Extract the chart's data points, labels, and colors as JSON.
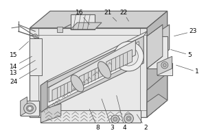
{
  "line_color": "#606060",
  "light_gray": "#e8e8e8",
  "mid_gray": "#d0d0d0",
  "dark_gray": "#b8b8b8",
  "label_fontsize": 6.5,
  "labels": {
    "1": {
      "lpos": [
        289,
        95
      ],
      "tpos": [
        258,
        105
      ]
    },
    "2": {
      "lpos": [
        213,
        12
      ],
      "tpos": [
        200,
        32
      ]
    },
    "3": {
      "lpos": [
        163,
        12
      ],
      "tpos": [
        148,
        55
      ]
    },
    "4": {
      "lpos": [
        182,
        12
      ],
      "tpos": [
        170,
        60
      ]
    },
    "5": {
      "lpos": [
        278,
        120
      ],
      "tpos": [
        250,
        128
      ]
    },
    "8": {
      "lpos": [
        142,
        12
      ],
      "tpos": [
        130,
        40
      ]
    },
    "13": {
      "lpos": [
        18,
        93
      ],
      "tpos": [
        50,
        112
      ]
    },
    "14": {
      "lpos": [
        18,
        103
      ],
      "tpos": [
        45,
        118
      ]
    },
    "15": {
      "lpos": [
        18,
        120
      ],
      "tpos": [
        40,
        140
      ]
    },
    "16": {
      "lpos": [
        115,
        183
      ],
      "tpos": [
        130,
        165
      ]
    },
    "21": {
      "lpos": [
        157,
        183
      ],
      "tpos": [
        170,
        170
      ]
    },
    "22": {
      "lpos": [
        180,
        183
      ],
      "tpos": [
        188,
        170
      ]
    },
    "23": {
      "lpos": [
        283,
        155
      ],
      "tpos": [
        255,
        148
      ]
    },
    "24": {
      "lpos": [
        18,
        80
      ],
      "tpos": [
        52,
        100
      ]
    }
  }
}
